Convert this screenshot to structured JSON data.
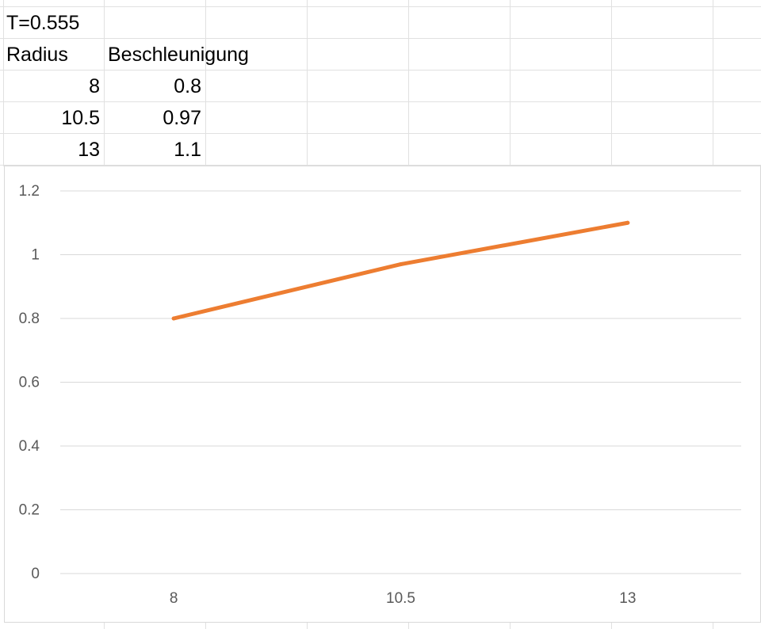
{
  "sheet": {
    "title_cell": "T=0.555",
    "header_radius": "Radius",
    "header_accel": "Beschleunigung",
    "rows": [
      {
        "radius": "8",
        "accel": "0.8"
      },
      {
        "radius": "10.5",
        "accel": "0.97"
      },
      {
        "radius": "13",
        "accel": "1.1"
      }
    ],
    "gridline_color": "#e1e1e1"
  },
  "chart_data": {
    "type": "line",
    "categories": [
      "8",
      "10.5",
      "13"
    ],
    "series": [
      {
        "values": [
          0.8,
          0.97,
          1.1
        ],
        "color": "#ed7d31"
      }
    ],
    "yticks": [
      "0",
      "0.2",
      "0.4",
      "0.6",
      "0.8",
      "1",
      "1.2"
    ],
    "ylim": [
      0,
      1.2
    ],
    "grid": true,
    "legend": "none"
  }
}
